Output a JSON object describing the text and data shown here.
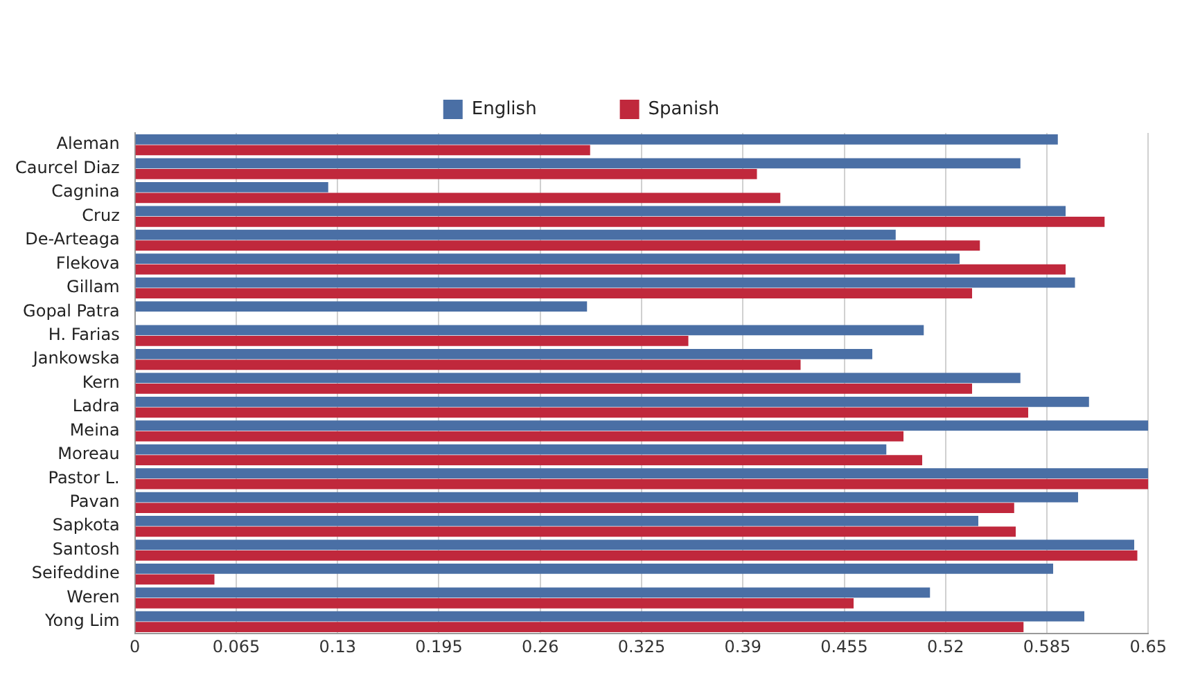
{
  "chart_data": {
    "type": "bar",
    "orientation": "horizontal",
    "categories": [
      "Aleman",
      "Caurcel Diaz",
      "Cagnina",
      "Cruz",
      "De-Arteaga",
      "Flekova",
      "Gillam",
      "Gopal Patra",
      "H. Farias",
      "Jankowska",
      "Kern",
      "Ladra",
      "Meina",
      "Moreau",
      "Pastor L.",
      "Pavan",
      "Sapkota",
      "Santosh",
      "Seifeddine",
      "Weren",
      "Yong Lim"
    ],
    "series": [
      {
        "name": "English",
        "color": "#4a6fa5",
        "values": [
          0.592,
          0.568,
          0.124,
          0.597,
          0.488,
          0.529,
          0.603,
          0.29,
          0.506,
          0.473,
          0.568,
          0.612,
          0.65,
          0.482,
          0.65,
          0.605,
          0.541,
          0.641,
          0.589,
          0.51,
          0.609
        ]
      },
      {
        "name": "Spanish",
        "color": "#c0283c",
        "values": [
          0.292,
          0.399,
          0.414,
          0.622,
          0.542,
          0.597,
          0.537,
          null,
          0.355,
          0.427,
          0.537,
          0.573,
          0.493,
          0.505,
          0.65,
          0.564,
          0.565,
          0.643,
          0.051,
          0.461,
          0.57
        ]
      }
    ],
    "xlim": [
      0,
      0.65
    ],
    "xticks": [
      0,
      0.065,
      0.13,
      0.195,
      0.26,
      0.325,
      0.39,
      0.455,
      0.52,
      0.585,
      0.65
    ],
    "grid": "x",
    "legend": "top"
  }
}
